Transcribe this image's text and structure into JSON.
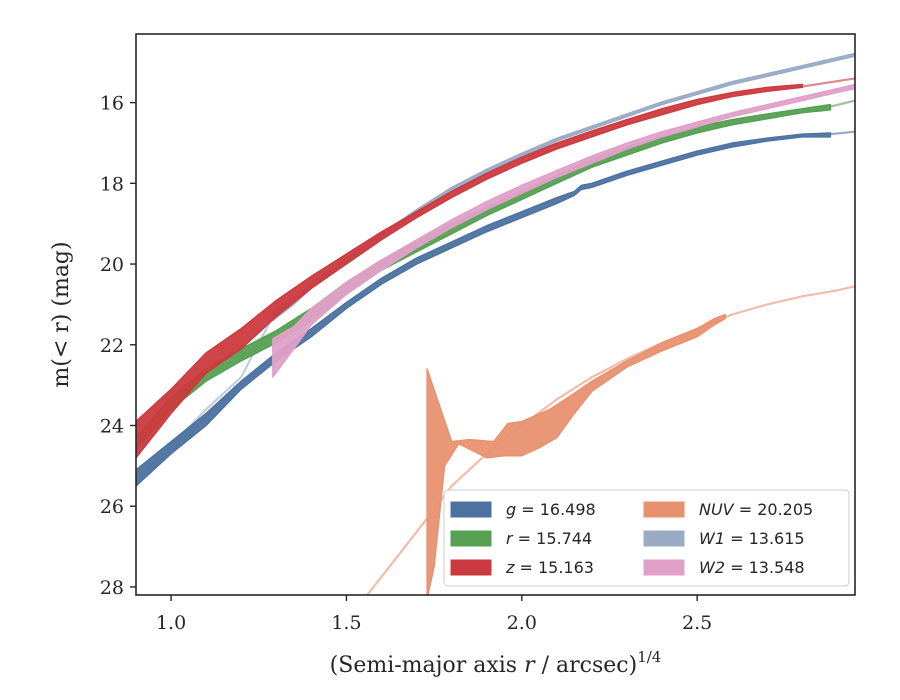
{
  "chart_data": {
    "type": "area",
    "title": "",
    "xlabel": "(Semi-major axis r / arcsec)",
    "xlabel_superscript": "1/4",
    "ylabel": "m(< r) (mag)",
    "xlim": [
      0.9,
      2.95
    ],
    "ylim": [
      28.2,
      14.3
    ],
    "y_inverted": true,
    "grid": false,
    "legend_position": "lower-right",
    "xticks": [
      1.0,
      1.5,
      2.0,
      2.5
    ],
    "xtick_labels": [
      "1.0",
      "1.5",
      "2.0",
      "2.5"
    ],
    "yticks": [
      16,
      18,
      20,
      22,
      24,
      26,
      28
    ],
    "ytick_labels": [
      "16",
      "18",
      "20",
      "22",
      "24",
      "26",
      "28"
    ],
    "series": [
      {
        "band": "g",
        "value_text": "16.498",
        "color": "#4c72a0",
        "band_lower": [
          [
            0.9,
            25.5
          ],
          [
            1.0,
            24.7
          ],
          [
            1.1,
            24.0
          ],
          [
            1.2,
            23.1
          ],
          [
            1.3,
            22.4
          ],
          [
            1.4,
            21.8
          ],
          [
            1.5,
            21.1
          ],
          [
            1.6,
            20.5
          ],
          [
            1.7,
            20.0
          ],
          [
            1.8,
            19.6
          ],
          [
            1.9,
            19.2
          ],
          [
            2.0,
            18.85
          ],
          [
            2.1,
            18.5
          ],
          [
            2.15,
            18.3
          ],
          [
            2.17,
            18.15
          ],
          [
            2.2,
            18.1
          ],
          [
            2.3,
            17.8
          ],
          [
            2.4,
            17.55
          ],
          [
            2.5,
            17.3
          ],
          [
            2.6,
            17.1
          ],
          [
            2.7,
            16.95
          ],
          [
            2.8,
            16.85
          ],
          [
            2.88,
            16.85
          ]
        ],
        "band_upper": [
          [
            0.9,
            25.1
          ],
          [
            1.0,
            24.4
          ],
          [
            1.1,
            23.7
          ],
          [
            1.2,
            22.9
          ],
          [
            1.3,
            22.2
          ],
          [
            1.4,
            21.6
          ],
          [
            1.5,
            20.95
          ],
          [
            1.6,
            20.35
          ],
          [
            1.7,
            19.85
          ],
          [
            1.8,
            19.45
          ],
          [
            1.9,
            19.05
          ],
          [
            2.0,
            18.7
          ],
          [
            2.1,
            18.35
          ],
          [
            2.15,
            18.2
          ],
          [
            2.17,
            18.05
          ],
          [
            2.2,
            18.0
          ],
          [
            2.3,
            17.7
          ],
          [
            2.4,
            17.45
          ],
          [
            2.5,
            17.2
          ],
          [
            2.6,
            17.0
          ],
          [
            2.7,
            16.88
          ],
          [
            2.8,
            16.78
          ],
          [
            2.88,
            16.75
          ]
        ],
        "model_line": [
          [
            2.88,
            16.78
          ],
          [
            2.95,
            16.72
          ]
        ]
      },
      {
        "band": "r",
        "value_text": "15.744",
        "color": "#55a052",
        "band_lower": [
          [
            0.9,
            24.6
          ],
          [
            1.0,
            23.6
          ],
          [
            1.1,
            22.9
          ],
          [
            1.2,
            22.4
          ],
          [
            1.3,
            21.95
          ],
          [
            1.4,
            21.4
          ],
          [
            1.5,
            20.75
          ],
          [
            1.6,
            20.15
          ],
          [
            1.7,
            19.7
          ],
          [
            1.8,
            19.25
          ],
          [
            1.9,
            18.8
          ],
          [
            2.0,
            18.4
          ],
          [
            2.1,
            18.0
          ],
          [
            2.15,
            17.8
          ],
          [
            2.2,
            17.6
          ],
          [
            2.3,
            17.3
          ],
          [
            2.4,
            17.0
          ],
          [
            2.5,
            16.75
          ],
          [
            2.6,
            16.55
          ],
          [
            2.7,
            16.4
          ],
          [
            2.8,
            16.25
          ],
          [
            2.88,
            16.18
          ]
        ],
        "band_upper": [
          [
            0.9,
            24.3
          ],
          [
            1.0,
            23.3
          ],
          [
            1.1,
            22.6
          ],
          [
            1.2,
            22.1
          ],
          [
            1.3,
            21.65
          ],
          [
            1.4,
            21.1
          ],
          [
            1.5,
            20.45
          ],
          [
            1.6,
            19.9
          ],
          [
            1.7,
            19.45
          ],
          [
            1.8,
            19.0
          ],
          [
            1.9,
            18.6
          ],
          [
            2.0,
            18.2
          ],
          [
            2.1,
            17.8
          ],
          [
            2.15,
            17.6
          ],
          [
            2.2,
            17.4
          ],
          [
            2.3,
            17.1
          ],
          [
            2.4,
            16.85
          ],
          [
            2.5,
            16.6
          ],
          [
            2.6,
            16.42
          ],
          [
            2.7,
            16.28
          ],
          [
            2.8,
            16.15
          ],
          [
            2.88,
            16.05
          ]
        ],
        "model_line": [
          [
            2.88,
            16.1
          ],
          [
            2.95,
            15.95
          ]
        ]
      },
      {
        "band": "z",
        "value_text": "15.163",
        "color": "#cb3a3f",
        "band_lower": [
          [
            0.9,
            24.8
          ],
          [
            1.0,
            23.7
          ],
          [
            1.1,
            22.7
          ],
          [
            1.2,
            22.1
          ],
          [
            1.3,
            21.3
          ],
          [
            1.4,
            20.6
          ],
          [
            1.5,
            20.0
          ],
          [
            1.6,
            19.4
          ],
          [
            1.7,
            18.85
          ],
          [
            1.8,
            18.35
          ],
          [
            1.9,
            17.9
          ],
          [
            2.0,
            17.5
          ],
          [
            2.1,
            17.15
          ],
          [
            2.2,
            16.85
          ],
          [
            2.3,
            16.55
          ],
          [
            2.4,
            16.3
          ],
          [
            2.5,
            16.05
          ],
          [
            2.6,
            15.85
          ],
          [
            2.7,
            15.72
          ],
          [
            2.8,
            15.62
          ]
        ],
        "band_upper": [
          [
            0.9,
            23.9
          ],
          [
            1.0,
            23.1
          ],
          [
            1.1,
            22.2
          ],
          [
            1.2,
            21.6
          ],
          [
            1.3,
            20.9
          ],
          [
            1.4,
            20.3
          ],
          [
            1.5,
            19.75
          ],
          [
            1.6,
            19.2
          ],
          [
            1.7,
            18.7
          ],
          [
            1.8,
            18.2
          ],
          [
            1.9,
            17.75
          ],
          [
            2.0,
            17.35
          ],
          [
            2.1,
            17.0
          ],
          [
            2.2,
            16.7
          ],
          [
            2.3,
            16.42
          ],
          [
            2.4,
            16.15
          ],
          [
            2.5,
            15.92
          ],
          [
            2.6,
            15.75
          ],
          [
            2.7,
            15.62
          ],
          [
            2.8,
            15.55
          ]
        ],
        "model_line": [
          [
            2.8,
            15.6
          ],
          [
            2.95,
            15.4
          ]
        ]
      },
      {
        "band": "NUV",
        "value_text": "20.205",
        "color": "#e8916f",
        "band_lower": [
          [
            1.73,
            28.3
          ],
          [
            1.75,
            27.5
          ],
          [
            1.78,
            25.0
          ],
          [
            1.82,
            24.45
          ],
          [
            1.9,
            24.8
          ],
          [
            1.95,
            24.75
          ],
          [
            2.0,
            24.75
          ],
          [
            2.05,
            24.55
          ],
          [
            2.1,
            24.3
          ],
          [
            2.15,
            23.7
          ],
          [
            2.2,
            23.15
          ],
          [
            2.3,
            22.55
          ],
          [
            2.4,
            22.15
          ],
          [
            2.5,
            21.8
          ],
          [
            2.55,
            21.5
          ],
          [
            2.58,
            21.35
          ]
        ],
        "band_upper": [
          [
            1.73,
            22.6
          ],
          [
            1.8,
            24.4
          ],
          [
            1.85,
            24.35
          ],
          [
            1.92,
            24.4
          ],
          [
            1.96,
            23.95
          ],
          [
            2.0,
            23.9
          ],
          [
            2.08,
            23.6
          ],
          [
            2.15,
            23.2
          ],
          [
            2.2,
            22.9
          ],
          [
            2.3,
            22.4
          ],
          [
            2.4,
            21.95
          ],
          [
            2.5,
            21.6
          ],
          [
            2.55,
            21.35
          ],
          [
            2.58,
            21.25
          ]
        ],
        "model_line": [
          [
            1.55,
            28.3
          ],
          [
            1.65,
            27.2
          ],
          [
            1.73,
            26.3
          ],
          [
            1.8,
            25.5
          ],
          [
            1.9,
            24.7
          ],
          [
            2.0,
            24.0
          ],
          [
            2.1,
            23.35
          ],
          [
            2.2,
            22.8
          ],
          [
            2.3,
            22.35
          ],
          [
            2.4,
            21.95
          ],
          [
            2.5,
            21.6
          ],
          [
            2.6,
            21.25
          ],
          [
            2.7,
            21.0
          ],
          [
            2.8,
            20.8
          ],
          [
            2.9,
            20.65
          ],
          [
            2.95,
            20.55
          ]
        ]
      },
      {
        "band": "W1",
        "value_text": "13.615",
        "color": "#9aabc6",
        "band_lower": [
          [
            1.29,
            21.4
          ],
          [
            1.35,
            21.0
          ],
          [
            1.4,
            20.6
          ],
          [
            1.5,
            19.95
          ],
          [
            1.6,
            19.35
          ],
          [
            1.7,
            18.75
          ],
          [
            1.8,
            18.2
          ],
          [
            1.9,
            17.75
          ],
          [
            2.0,
            17.35
          ],
          [
            2.1,
            16.95
          ],
          [
            2.2,
            16.65
          ],
          [
            2.3,
            16.35
          ],
          [
            2.4,
            16.05
          ],
          [
            2.5,
            15.8
          ],
          [
            2.6,
            15.55
          ],
          [
            2.7,
            15.35
          ],
          [
            2.8,
            15.15
          ],
          [
            2.9,
            14.95
          ],
          [
            2.95,
            14.85
          ]
        ],
        "band_upper": [
          [
            1.29,
            21.15
          ],
          [
            1.35,
            20.85
          ],
          [
            1.4,
            20.5
          ],
          [
            1.5,
            19.85
          ],
          [
            1.6,
            19.25
          ],
          [
            1.7,
            18.65
          ],
          [
            1.8,
            18.1
          ],
          [
            1.9,
            17.65
          ],
          [
            2.0,
            17.25
          ],
          [
            2.1,
            16.88
          ],
          [
            2.2,
            16.58
          ],
          [
            2.3,
            16.28
          ],
          [
            2.4,
            15.98
          ],
          [
            2.5,
            15.73
          ],
          [
            2.6,
            15.48
          ],
          [
            2.7,
            15.28
          ],
          [
            2.8,
            15.08
          ],
          [
            2.9,
            14.88
          ],
          [
            2.95,
            14.78
          ]
        ],
        "model_line": [
          [
            0.9,
            25.4
          ],
          [
            1.0,
            24.5
          ],
          [
            1.1,
            23.6
          ],
          [
            1.2,
            22.8
          ],
          [
            1.29,
            21.3
          ]
        ]
      },
      {
        "band": "W2",
        "value_text": "13.548",
        "color": "#e0a0c8",
        "band_lower": [
          [
            1.29,
            22.8
          ],
          [
            1.35,
            22.1
          ],
          [
            1.4,
            21.5
          ],
          [
            1.5,
            20.75
          ],
          [
            1.6,
            20.15
          ],
          [
            1.7,
            19.6
          ],
          [
            1.8,
            19.1
          ],
          [
            1.9,
            18.65
          ],
          [
            2.0,
            18.25
          ],
          [
            2.1,
            17.85
          ],
          [
            2.2,
            17.5
          ],
          [
            2.3,
            17.15
          ],
          [
            2.4,
            16.85
          ],
          [
            2.5,
            16.6
          ],
          [
            2.6,
            16.35
          ],
          [
            2.7,
            16.15
          ],
          [
            2.8,
            15.95
          ],
          [
            2.9,
            15.75
          ],
          [
            2.95,
            15.65
          ]
        ],
        "band_upper": [
          [
            1.29,
            21.85
          ],
          [
            1.35,
            21.55
          ],
          [
            1.4,
            21.1
          ],
          [
            1.5,
            20.45
          ],
          [
            1.6,
            19.9
          ],
          [
            1.7,
            19.4
          ],
          [
            1.8,
            18.9
          ],
          [
            1.9,
            18.45
          ],
          [
            2.0,
            18.05
          ],
          [
            2.1,
            17.68
          ],
          [
            2.2,
            17.32
          ],
          [
            2.3,
            17.0
          ],
          [
            2.4,
            16.72
          ],
          [
            2.5,
            16.48
          ],
          [
            2.6,
            16.25
          ],
          [
            2.7,
            16.05
          ],
          [
            2.8,
            15.85
          ],
          [
            2.9,
            15.65
          ],
          [
            2.95,
            15.55
          ]
        ],
        "model_line": [
          [
            0.9,
            25.5
          ],
          [
            1.0,
            24.6
          ],
          [
            1.1,
            23.8
          ],
          [
            1.2,
            23.0
          ],
          [
            1.29,
            22.3
          ]
        ]
      }
    ]
  }
}
